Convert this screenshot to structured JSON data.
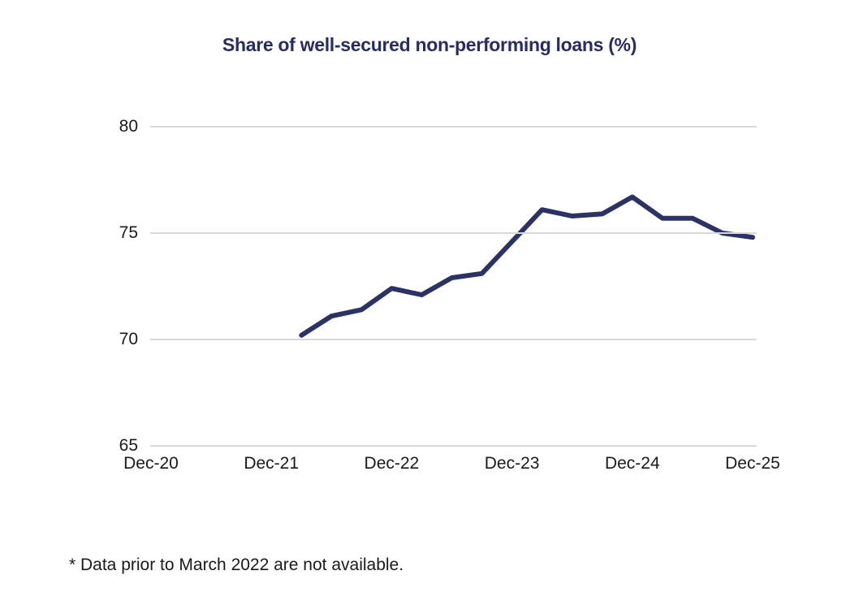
{
  "figure": {
    "title": "Share of well-secured non-performing loans (%)",
    "footnote": "* Data prior to March 2022 are not available."
  },
  "colors": {
    "title_text": "#262C6A",
    "line": "#2B3269",
    "gridline": "#D9D9D9",
    "axis_text": "#1A1A1A",
    "background": "#FFFFFF"
  },
  "chart_data": {
    "type": "line",
    "title": "Share of well-secured non-performing loans (%)",
    "x": [
      "Mar-22",
      "Jun-22",
      "Sep-22",
      "Dec-22",
      "Mar-23",
      "Jun-23",
      "Sep-23",
      "Dec-23",
      "Mar-24",
      "Jun-24",
      "Sep-24",
      "Dec-24",
      "Mar-25",
      "Jun-25",
      "Sep-25",
      "Dec-25"
    ],
    "series": [
      {
        "name": "Share of well-secured non-performing loans (%)",
        "values": [
          70.2,
          71.1,
          71.4,
          72.4,
          72.1,
          72.9,
          73.1,
          74.6,
          76.1,
          75.8,
          75.9,
          76.7,
          75.7,
          75.7,
          75.0,
          74.8
        ]
      }
    ],
    "xlabel": "",
    "ylabel": "",
    "ylim": [
      65,
      80
    ],
    "yticks": [
      65,
      70,
      75,
      80
    ],
    "xticks": [
      "Dec-20",
      "Dec-21",
      "Dec-22",
      "Dec-23",
      "Dec-24",
      "Dec-25"
    ],
    "x_axis_start": "Dec-20",
    "data_start_offset_quarters": 5,
    "grid": "horizontal",
    "legend": "none",
    "line_color": "#2B3269"
  }
}
